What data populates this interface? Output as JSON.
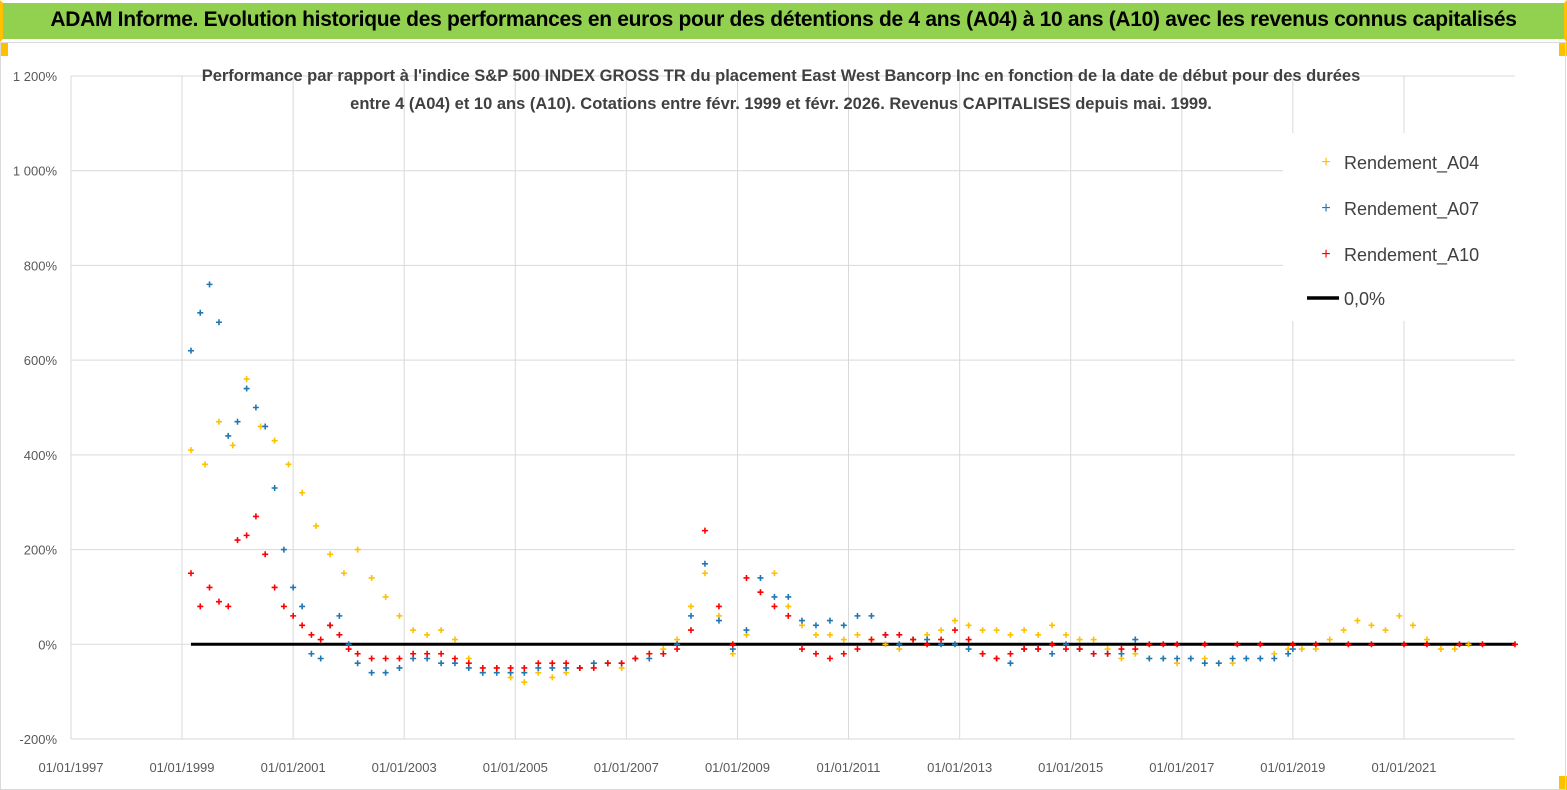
{
  "header": {
    "title": "ADAM Informe. Evolution historique des performances en euros pour des détentions de 4 ans (A04) à 10 ans (A10) avec les revenus connus capitalisés"
  },
  "colors": {
    "header_bg": "#92d050",
    "A04": "#ffc000",
    "A07": "#1f77b4",
    "A10": "#ff0000",
    "zero_line": "#000000",
    "grid": "#d9d9d9"
  },
  "chart_data": {
    "type": "scatter",
    "title_line1": "Performance par rapport à l'indice S&P 500 INDEX GROSS TR  du placement East West Bancorp Inc en fonction de la date de début pour des durées",
    "title_line2": "entre 4 (A04) et 10 ans (A10).  Cotations entre févr. 1999 et févr. 2026.  Revenus CAPITALISES depuis mai. 1999.",
    "xlabel": "",
    "ylabel": "",
    "y_unit": "%",
    "ylim": [
      -200,
      1200
    ],
    "y_ticks": [
      -200,
      0,
      200,
      400,
      600,
      800,
      1000,
      1200
    ],
    "y_tick_labels": [
      "-200%",
      "0%",
      "200%",
      "400%",
      "600%",
      "800%",
      "1 000%",
      "1 200%"
    ],
    "xlim": [
      "1997-01-01",
      "2023-01-01"
    ],
    "x_ticks": [
      "1997-01-01",
      "1999-01-01",
      "2001-01-01",
      "2003-01-01",
      "2005-01-01",
      "2007-01-01",
      "2009-01-01",
      "2011-01-01",
      "2013-01-01",
      "2015-01-01",
      "2017-01-01",
      "2019-01-01",
      "2021-01-01"
    ],
    "x_tick_labels": [
      "01/01/1997",
      "01/01/1999",
      "01/01/2001",
      "01/01/2003",
      "01/01/2005",
      "01/01/2007",
      "01/01/2009",
      "01/01/2011",
      "01/01/2013",
      "01/01/2015",
      "01/01/2017",
      "01/01/2019",
      "01/01/2021"
    ],
    "grid": true,
    "legend_position": "top-right",
    "marker": "+",
    "series": [
      {
        "name": "Rendement_A04",
        "x": [
          "1999-03-01",
          "1999-06-01",
          "1999-09-01",
          "1999-12-01",
          "2000-03-01",
          "2000-06-01",
          "2000-09-01",
          "2000-12-01",
          "2001-03-01",
          "2001-06-01",
          "2001-09-01",
          "2001-12-01",
          "2002-03-01",
          "2002-06-01",
          "2002-09-01",
          "2002-12-01",
          "2003-03-01",
          "2003-06-01",
          "2003-09-01",
          "2003-12-01",
          "2004-03-01",
          "2004-06-01",
          "2004-09-01",
          "2004-12-01",
          "2005-03-01",
          "2005-06-01",
          "2005-09-01",
          "2005-12-01",
          "2006-03-01",
          "2006-06-01",
          "2006-09-01",
          "2006-12-01",
          "2007-03-01",
          "2007-06-01",
          "2007-09-01",
          "2007-12-01",
          "2008-03-01",
          "2008-06-01",
          "2008-09-01",
          "2008-12-01",
          "2009-03-01",
          "2009-06-01",
          "2009-09-01",
          "2009-12-01",
          "2010-03-01",
          "2010-06-01",
          "2010-09-01",
          "2010-12-01",
          "2011-03-01",
          "2011-06-01",
          "2011-09-01",
          "2011-12-01",
          "2012-03-01",
          "2012-06-01",
          "2012-09-01",
          "2012-12-01",
          "2013-03-01",
          "2013-06-01",
          "2013-09-01",
          "2013-12-01",
          "2014-03-01",
          "2014-06-01",
          "2014-09-01",
          "2014-12-01",
          "2015-03-01",
          "2015-06-01",
          "2015-09-01",
          "2015-12-01",
          "2016-03-01",
          "2016-06-01",
          "2016-09-01",
          "2016-12-01",
          "2017-03-01",
          "2017-06-01",
          "2017-09-01",
          "2017-12-01",
          "2018-03-01",
          "2018-06-01",
          "2018-09-01",
          "2018-12-01",
          "2019-03-01",
          "2019-06-01",
          "2019-09-01",
          "2019-12-01",
          "2020-03-01",
          "2020-06-01",
          "2020-09-01",
          "2020-12-01",
          "2021-03-01",
          "2021-06-01",
          "2021-09-01",
          "2021-12-01",
          "2022-03-01"
        ],
        "y": [
          410,
          380,
          470,
          420,
          560,
          460,
          430,
          380,
          320,
          250,
          190,
          150,
          200,
          140,
          100,
          60,
          30,
          20,
          30,
          10,
          -30,
          -60,
          -50,
          -70,
          -80,
          -60,
          -70,
          -60,
          -50,
          -40,
          -40,
          -50,
          -30,
          -20,
          -10,
          10,
          80,
          150,
          60,
          -20,
          20,
          110,
          150,
          80,
          40,
          20,
          20,
          10,
          20,
          10,
          0,
          -10,
          10,
          20,
          30,
          50,
          40,
          30,
          30,
          20,
          30,
          20,
          40,
          20,
          10,
          10,
          -10,
          -30,
          -20,
          -30,
          -30,
          -40,
          -30,
          -30,
          -40,
          -40,
          -30,
          -30,
          -20,
          -10,
          -10,
          -10,
          10,
          30,
          50,
          40,
          30,
          60,
          40,
          10,
          -10,
          -10,
          0
        ]
      },
      {
        "name": "Rendement_A07",
        "x": [
          "1999-03-01",
          "1999-05-01",
          "1999-07-01",
          "1999-09-01",
          "1999-11-01",
          "2000-01-01",
          "2000-03-01",
          "2000-05-01",
          "2000-07-01",
          "2000-09-01",
          "2000-11-01",
          "2001-01-01",
          "2001-03-01",
          "2001-05-01",
          "2001-07-01",
          "2001-09-01",
          "2001-11-01",
          "2002-01-01",
          "2002-03-01",
          "2002-06-01",
          "2002-09-01",
          "2002-12-01",
          "2003-03-01",
          "2003-06-01",
          "2003-09-01",
          "2003-12-01",
          "2004-03-01",
          "2004-06-01",
          "2004-09-01",
          "2004-12-01",
          "2005-03-01",
          "2005-06-01",
          "2005-09-01",
          "2005-12-01",
          "2006-03-01",
          "2006-06-01",
          "2006-09-01",
          "2006-12-01",
          "2007-03-01",
          "2007-06-01",
          "2007-09-01",
          "2007-12-01",
          "2008-03-01",
          "2008-06-01",
          "2008-09-01",
          "2008-12-01",
          "2009-03-01",
          "2009-06-01",
          "2009-09-01",
          "2009-12-01",
          "2010-03-01",
          "2010-06-01",
          "2010-09-01",
          "2010-12-01",
          "2011-03-01",
          "2011-06-01",
          "2011-09-01",
          "2011-12-01",
          "2012-03-01",
          "2012-06-01",
          "2012-09-01",
          "2012-12-01",
          "2013-03-01",
          "2013-06-01",
          "2013-09-01",
          "2013-12-01",
          "2014-03-01",
          "2014-06-01",
          "2014-09-01",
          "2014-12-01",
          "2015-03-01",
          "2015-06-01",
          "2015-09-01",
          "2015-12-01",
          "2016-03-01",
          "2016-06-01",
          "2016-09-01",
          "2016-12-01",
          "2017-03-01",
          "2017-06-01",
          "2017-09-01",
          "2017-12-01",
          "2018-03-01",
          "2018-06-01",
          "2018-09-01",
          "2018-12-01",
          "2019-01-01"
        ],
        "y": [
          620,
          700,
          760,
          680,
          440,
          470,
          540,
          500,
          460,
          330,
          200,
          120,
          80,
          -20,
          -30,
          40,
          60,
          0,
          -40,
          -60,
          -60,
          -50,
          -30,
          -30,
          -40,
          -40,
          -50,
          -60,
          -60,
          -60,
          -60,
          -50,
          -50,
          -50,
          -50,
          -40,
          -40,
          -40,
          -30,
          -30,
          -20,
          0,
          60,
          170,
          50,
          -10,
          30,
          140,
          100,
          100,
          50,
          40,
          50,
          40,
          60,
          60,
          20,
          0,
          10,
          10,
          0,
          0,
          -10,
          -20,
          -30,
          -40,
          -10,
          -10,
          -20,
          0,
          -10,
          -20,
          -20,
          -20,
          10,
          -30,
          -30,
          -30,
          -30,
          -40,
          -40,
          -30,
          -30,
          -30,
          -30,
          -20,
          -10
        ]
      },
      {
        "name": "Rendement_A10",
        "x": [
          "1999-03-01",
          "1999-05-01",
          "1999-07-01",
          "1999-09-01",
          "1999-11-01",
          "2000-01-01",
          "2000-03-01",
          "2000-05-01",
          "2000-07-01",
          "2000-09-01",
          "2000-11-01",
          "2001-01-01",
          "2001-03-01",
          "2001-05-01",
          "2001-07-01",
          "2001-09-01",
          "2001-11-01",
          "2002-01-01",
          "2002-03-01",
          "2002-06-01",
          "2002-09-01",
          "2002-12-01",
          "2003-03-01",
          "2003-06-01",
          "2003-09-01",
          "2003-12-01",
          "2004-03-01",
          "2004-06-01",
          "2004-09-01",
          "2004-12-01",
          "2005-03-01",
          "2005-06-01",
          "2005-09-01",
          "2005-12-01",
          "2006-03-01",
          "2006-06-01",
          "2006-09-01",
          "2006-12-01",
          "2007-03-01",
          "2007-06-01",
          "2007-09-01",
          "2007-12-01",
          "2008-03-01",
          "2008-06-01",
          "2008-09-01",
          "2008-12-01",
          "2009-03-01",
          "2009-06-01",
          "2009-09-01",
          "2009-12-01",
          "2010-03-01",
          "2010-06-01",
          "2010-09-01",
          "2010-12-01",
          "2011-03-01",
          "2011-06-01",
          "2011-09-01",
          "2011-12-01",
          "2012-03-01",
          "2012-06-01",
          "2012-09-01",
          "2012-12-01",
          "2013-03-01",
          "2013-06-01",
          "2013-09-01",
          "2013-12-01",
          "2014-03-01",
          "2014-06-01",
          "2014-09-01",
          "2014-12-01",
          "2015-03-01",
          "2015-06-01",
          "2015-09-01",
          "2015-12-01",
          "2016-03-01",
          "2016-06-01",
          "2016-09-01",
          "2016-12-01",
          "2017-06-01",
          "2018-01-01",
          "2018-06-01",
          "2019-01-01",
          "2019-06-01",
          "2020-01-01",
          "2020-06-01",
          "2021-01-01",
          "2021-06-01",
          "2022-01-01",
          "2022-06-01",
          "2023-01-01"
        ],
        "y": [
          150,
          80,
          120,
          90,
          80,
          220,
          230,
          270,
          190,
          120,
          80,
          60,
          40,
          20,
          10,
          40,
          20,
          -10,
          -20,
          -30,
          -30,
          -30,
          -20,
          -20,
          -20,
          -30,
          -40,
          -50,
          -50,
          -50,
          -50,
          -40,
          -40,
          -40,
          -50,
          -50,
          -40,
          -40,
          -30,
          -20,
          -20,
          -10,
          30,
          240,
          80,
          0,
          140,
          110,
          80,
          60,
          -10,
          -20,
          -30,
          -20,
          -10,
          10,
          20,
          20,
          10,
          0,
          10,
          30,
          10,
          -20,
          -30,
          -20,
          -10,
          -10,
          0,
          -10,
          -10,
          -20,
          -20,
          -10,
          -10,
          0,
          0,
          0,
          0,
          0,
          0,
          0,
          0,
          0,
          0,
          0,
          0,
          0,
          0,
          0
        ]
      },
      {
        "name": "0,0%",
        "x": [
          "1999-03-01",
          "2023-01-01"
        ],
        "y": [
          0,
          0
        ]
      }
    ]
  }
}
